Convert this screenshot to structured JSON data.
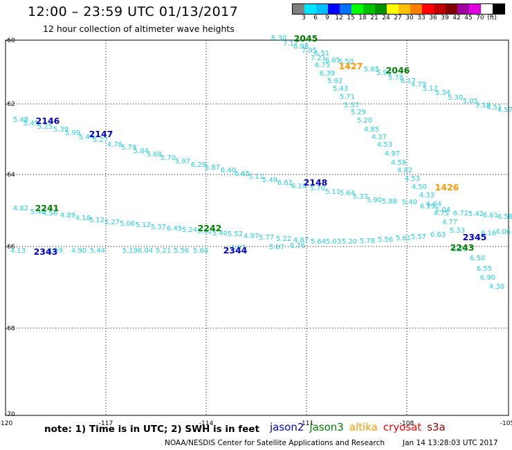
{
  "header": {
    "title": "12:00 – 23:59 UTC 01/13/2017",
    "subtitle": "12 hour collection of altimeter wave heights"
  },
  "legend": {
    "colors": [
      "#808080",
      "#00e5ff",
      "#00bfff",
      "#0000ff",
      "#0072ff",
      "#00ff00",
      "#00c000",
      "#009000",
      "#ffff00",
      "#ffc000",
      "#ff8000",
      "#ff0000",
      "#c00000",
      "#800000",
      "#a000a0",
      "#e000e0",
      "#ffffff",
      "#000000"
    ],
    "labels": [
      "3",
      "6",
      "9",
      "12",
      "15",
      "18",
      "21",
      "24",
      "27",
      "30",
      "33",
      "36",
      "39",
      "42",
      "45",
      "70",
      "(ft)"
    ]
  },
  "axes": {
    "x_ticks": [
      "-120",
      "-117",
      "-114",
      "-111",
      "-108",
      "-105"
    ],
    "y_ticks": [
      "-60",
      "-62",
      "-64",
      "-66",
      "-68",
      "-70"
    ]
  },
  "passes": [
    {
      "id": "2045",
      "color": "#008000"
    },
    {
      "id": "1427",
      "color": "#ff9900"
    },
    {
      "id": "2046",
      "color": "#008000"
    },
    {
      "id": "2146",
      "color": "#0000cc"
    },
    {
      "id": "2147",
      "color": "#0000cc"
    },
    {
      "id": "2148",
      "color": "#0000cc"
    },
    {
      "id": "1426",
      "color": "#ff9900"
    },
    {
      "id": "2241",
      "color": "#008000"
    },
    {
      "id": "2242",
      "color": "#008000"
    },
    {
      "id": "2345",
      "color": "#0000cc"
    },
    {
      "id": "2243",
      "color": "#008000"
    },
    {
      "id": "2343",
      "color": "#0000cc"
    },
    {
      "id": "2344",
      "color": "#0000cc"
    }
  ],
  "wave_heights": [
    "8.30",
    "7.17",
    "6.98",
    "7.05",
    "6.51",
    "7.21",
    "6.65",
    "6.75",
    "6.39",
    "5.92",
    "5.43",
    "5.71",
    "5.57",
    "5.29",
    "5.20",
    "4.85",
    "4.37",
    "4.53",
    "4.97",
    "4.59",
    "4.82",
    "4.53",
    "4.50",
    "4.33",
    "6.64",
    "4.75",
    "4.77",
    "5.33",
    "6.50",
    "5.65",
    "5.90",
    "5.78",
    "6.17",
    "4.79",
    "5.12",
    "5.34",
    "5.30",
    "5.05",
    "5.18",
    "4.51",
    "4.57",
    "5.48",
    "5.45",
    "5.15",
    "5.39",
    "5.99",
    "5.44",
    "5.27",
    "4.78",
    "5.79",
    "5.84",
    "5.68",
    "5.70",
    "5.97",
    "6.29",
    "5.87",
    "6.40",
    "6.65",
    "5.11",
    "5.49",
    "6.62",
    "6.19",
    "5.70",
    "5.11",
    "5.64",
    "5.37",
    "5.90",
    "5.88",
    "5.40",
    "6.19",
    "5.04",
    "6.72",
    "5.42",
    "6.61",
    "6.58",
    "4.82",
    "5.48",
    "4.56",
    "4.89",
    "4.18",
    "5.12",
    "5.27",
    "5.06",
    "5.12",
    "5.37",
    "6.45",
    "5.24",
    "5.62",
    "5.40",
    "5.52",
    "4.97",
    "5.77",
    "5.22",
    "4.87",
    "5.64",
    "5.03",
    "5.20",
    "5.78",
    "5.56",
    "5.61",
    "5.57",
    "6.63",
    "6.16",
    "4.06",
    "4.13",
    "4.59",
    "4.90",
    "5.44",
    "5.19",
    "6.04",
    "5.21",
    "5.56",
    "5.60",
    "4.97",
    "5.07",
    "6.76",
    "6.29",
    "6.50",
    "6.55",
    "6.90",
    "4.30"
  ],
  "footer": {
    "note": "note:  1) Time is in UTC;  2) SWH is in feet",
    "satellites": [
      {
        "name": "jason2",
        "color": "#0000cc"
      },
      {
        "name": "jason3",
        "color": "#008000"
      },
      {
        "name": "altika",
        "color": "#ff9900"
      },
      {
        "name": "cryosat",
        "color": "#ff0000"
      },
      {
        "name": "s3a",
        "color": "#990000"
      }
    ],
    "credit": "NOAA/NESDIS Center for Satellite Applications and Research",
    "timestamp": "Jan 14 13:28:03 UTC 2017"
  }
}
